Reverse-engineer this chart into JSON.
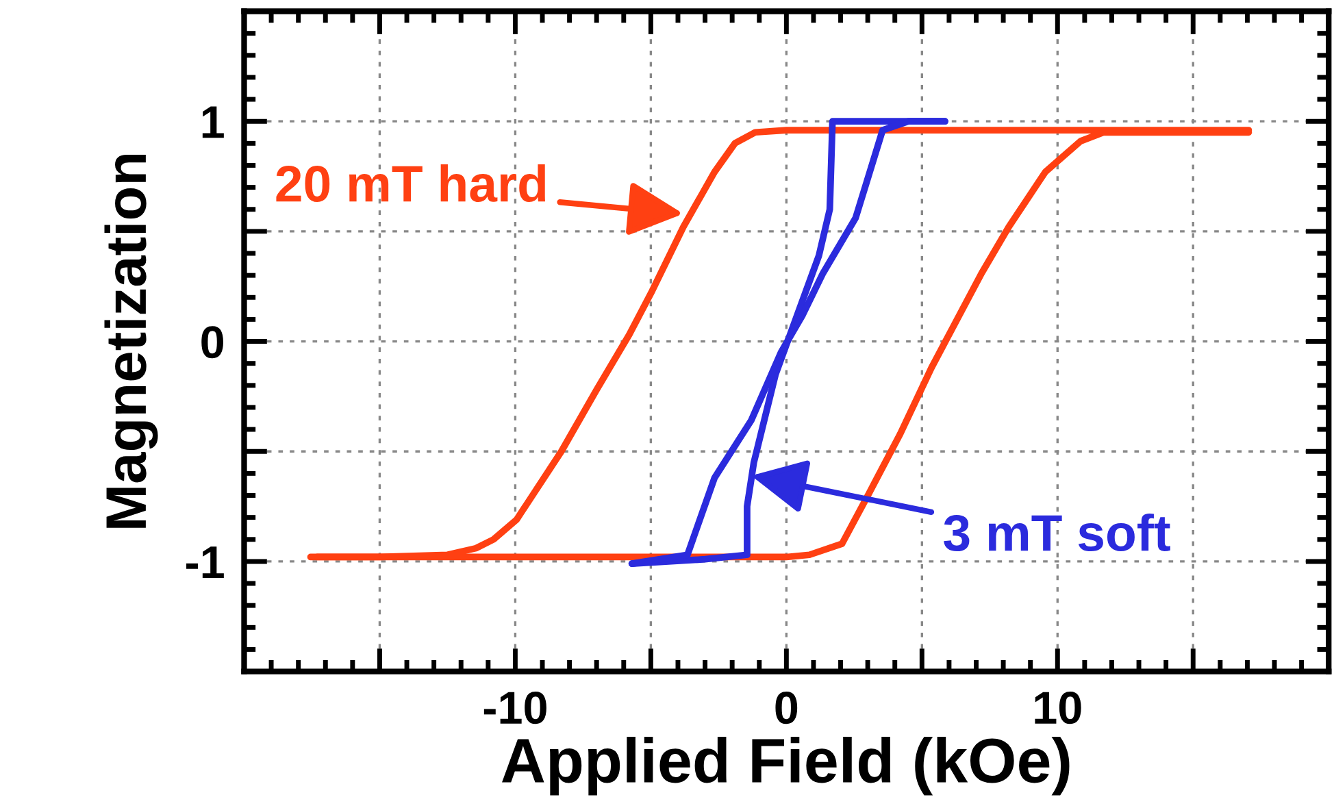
{
  "chart_data": {
    "type": "line",
    "xlabel": "Applied Field (kOe)",
    "ylabel": "Magnetization",
    "xlim": [
      -20,
      20
    ],
    "ylim": [
      -1.5,
      1.5
    ],
    "xticks": [
      {
        "value": -15,
        "label": null
      },
      -10,
      {
        "value": -5,
        "label": null
      },
      0,
      {
        "value": 5,
        "label": null
      },
      10,
      {
        "value": 15,
        "label": null
      }
    ],
    "yticks": [
      -1,
      {
        "value": -0.5,
        "label": null
      },
      0,
      {
        "value": 0.5,
        "label": null
      },
      1
    ],
    "grid": true,
    "legend": false,
    "marker": "none",
    "line_style": "solid",
    "series": [
      {
        "color": "#ff4012",
        "x": [
          17.05,
          10,
          5,
          0,
          -1.15,
          -1.9,
          -2.65,
          -3.8,
          -4.95,
          -5.8,
          -7,
          -8.3,
          -9.95,
          -10.8,
          -11.45,
          -12.5,
          -15,
          -17.55
        ],
        "values": [
          0.96,
          0.96,
          0.96,
          0.96,
          0.95,
          0.9,
          0.77,
          0.52,
          0.23,
          0.03,
          -0.22,
          -0.5,
          -0.81,
          -0.9,
          -0.94,
          -0.97,
          -0.98,
          -0.98
        ]
      },
      {
        "color": "#ff4012",
        "x": [
          -17.3,
          -15,
          -10,
          -5,
          0,
          0.85,
          2.05,
          3.05,
          4.2,
          5.35,
          7.2,
          8.2,
          9.55,
          10.85,
          11.7,
          13,
          15,
          17.05
        ],
        "values": [
          -0.98,
          -0.98,
          -0.98,
          -0.98,
          -0.98,
          -0.97,
          -0.92,
          -0.69,
          -0.42,
          -0.12,
          0.31,
          0.52,
          0.77,
          0.91,
          0.95,
          0.95,
          0.95,
          0.95
        ]
      },
      {
        "color": "#2b2bdd",
        "x": [
          5.85,
          4.5,
          3,
          1.7,
          1.6,
          1.2,
          0.4,
          -0.4,
          -1.2,
          -1.45,
          -1.45,
          -3,
          -5.7
        ],
        "values": [
          1.0,
          1.0,
          1.0,
          1.0,
          0.6,
          0.39,
          0.12,
          -0.15,
          -0.55,
          -0.75,
          -0.97,
          -0.99,
          -1.01
        ]
      },
      {
        "color": "#2b2bdd",
        "x": [
          -5.7,
          -3.65,
          -2.65,
          -1.3,
          -0.2,
          0.6,
          1.35,
          2.55,
          3.55,
          4.5,
          5.85
        ],
        "values": [
          -1.01,
          -0.97,
          -0.62,
          -0.36,
          -0.05,
          0.12,
          0.31,
          0.56,
          0.96,
          1.0,
          1.0
        ]
      }
    ],
    "annotations": [
      {
        "text": "20 mT hard",
        "x": -3.8,
        "y": 0.58
      },
      {
        "text": "3 mT soft",
        "x": -1.3,
        "y": -0.61
      }
    ]
  }
}
